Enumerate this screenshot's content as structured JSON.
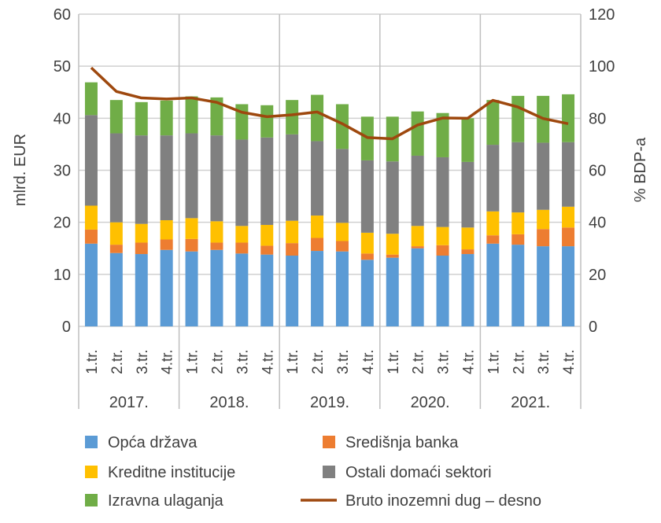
{
  "chart_data": {
    "type": "bar",
    "stacked": true,
    "title": "",
    "ylabel": "mlrd. EUR",
    "y2label": "% BDP-a",
    "ylim": [
      0,
      60
    ],
    "y2lim": [
      0,
      120
    ],
    "yticks": [
      "0",
      "10",
      "20",
      "30",
      "40",
      "50",
      "60"
    ],
    "y2ticks": [
      "0",
      "20",
      "40",
      "60",
      "80",
      "100",
      "120"
    ],
    "groups": [
      "2017.",
      "2018.",
      "2019.",
      "2020.",
      "2021."
    ],
    "quarters": [
      "1.tr.",
      "2.tr.",
      "3.tr.",
      "4.tr."
    ],
    "grid": true,
    "legend_placement": "bottom",
    "series": [
      {
        "name": "Opća država",
        "color": "#5b9bd5",
        "values": [
          15.9,
          14.1,
          13.9,
          14.7,
          14.4,
          14.7,
          14.0,
          13.8,
          13.6,
          14.5,
          14.4,
          12.8,
          13.2,
          15.0,
          13.6,
          13.9,
          15.9,
          15.7,
          15.4,
          15.4
        ]
      },
      {
        "name": "Središnja banka",
        "color": "#ed7d31",
        "values": [
          2.7,
          1.6,
          2.2,
          2.0,
          2.4,
          1.4,
          2.1,
          1.7,
          2.4,
          2.5,
          2.0,
          1.2,
          0.6,
          0.4,
          2.0,
          0.9,
          1.6,
          2.0,
          3.3,
          3.6
        ]
      },
      {
        "name": "Kreditne institucije",
        "color": "#ffc000",
        "values": [
          4.6,
          4.3,
          3.6,
          3.7,
          4.0,
          4.1,
          3.2,
          4.0,
          4.3,
          4.3,
          3.5,
          4.0,
          4.0,
          3.9,
          3.5,
          4.2,
          4.6,
          4.2,
          3.7,
          4.0
        ]
      },
      {
        "name": "Ostali domaći sektori",
        "color": "#808080",
        "values": [
          17.4,
          17.1,
          17.0,
          16.3,
          16.3,
          16.5,
          16.6,
          16.8,
          16.6,
          14.3,
          14.2,
          13.9,
          13.9,
          13.5,
          13.4,
          12.6,
          12.8,
          13.5,
          12.9,
          12.4
        ]
      },
      {
        "name": "Izravna ulaganja",
        "color": "#70ad47",
        "values": [
          6.3,
          6.4,
          6.4,
          6.7,
          7.1,
          7.3,
          6.8,
          6.2,
          6.6,
          8.9,
          8.6,
          8.4,
          8.6,
          8.5,
          8.5,
          8.4,
          8.6,
          8.9,
          9.0,
          9.2
        ]
      }
    ],
    "line": {
      "name": "Bruto inozemni dug – desno",
      "color": "#9e480e",
      "axis": "right",
      "values": [
        99.4,
        90.3,
        87.8,
        87.4,
        87.8,
        86.1,
        82.3,
        80.6,
        81.3,
        82.4,
        77.9,
        72.6,
        72.1,
        77.4,
        80.1,
        80.0,
        86.9,
        84.3,
        79.9,
        77.9
      ]
    }
  }
}
